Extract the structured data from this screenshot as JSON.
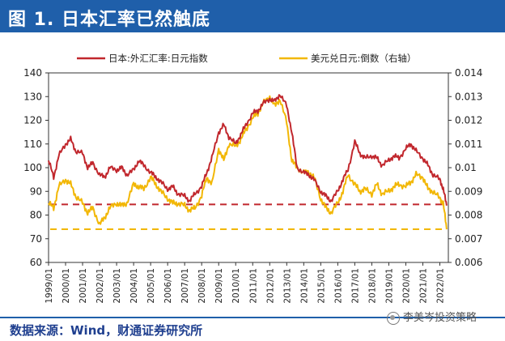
{
  "header": {
    "title": "图 1. 日本汇率已然触底"
  },
  "footer": {
    "source": "数据来源：Wind，财通证券研究所",
    "watermark": "李美岑投资策略"
  },
  "colors": {
    "series1": "#c1272d",
    "series2": "#f2b705",
    "title_bg": "#1f5faa"
  },
  "chart_data": {
    "type": "line",
    "legend": [
      "日本:外汇汇率:日元指数",
      "美元兑日元:倒数（右轴）"
    ],
    "x_labels": [
      "1999/01",
      "2000/01",
      "2001/01",
      "2002/01",
      "2003/01",
      "2004/01",
      "2005/01",
      "2006/01",
      "2007/01",
      "2008/01",
      "2009/01",
      "2010/01",
      "2011/01",
      "2012/01",
      "2013/01",
      "2014/01",
      "2015/01",
      "2016/01",
      "2017/01",
      "2018/01",
      "2019/01",
      "2020/01",
      "2021/01",
      "2022/01"
    ],
    "left_axis": {
      "min": 60,
      "max": 140,
      "ticks": [
        "140",
        "130",
        "120",
        "110",
        "100",
        "90",
        "80",
        "70",
        "60"
      ]
    },
    "right_axis": {
      "min": 0.006,
      "max": 0.014,
      "ticks": [
        "0.014",
        "0.013",
        "0.012",
        "0.011",
        "0.01",
        "0.009",
        "0.008",
        "0.007",
        "0.006"
      ]
    },
    "ref_lines": {
      "left": 84.5,
      "right": 0.0074
    },
    "series": [
      {
        "name": "日本:外汇汇率:日元指数",
        "axis": "left",
        "x": [
          1999.0,
          1999.3,
          1999.6,
          2000.0,
          2000.3,
          2000.6,
          2001.0,
          2001.3,
          2001.6,
          2002.0,
          2002.3,
          2002.6,
          2003.0,
          2003.3,
          2003.6,
          2004.0,
          2004.3,
          2004.6,
          2005.0,
          2005.3,
          2005.6,
          2006.0,
          2006.3,
          2006.6,
          2007.0,
          2007.3,
          2007.6,
          2008.0,
          2008.3,
          2008.6,
          2009.0,
          2009.3,
          2009.6,
          2010.0,
          2010.3,
          2010.6,
          2011.0,
          2011.3,
          2011.6,
          2012.0,
          2012.3,
          2012.6,
          2013.0,
          2013.3,
          2013.6,
          2014.0,
          2014.3,
          2014.6,
          2015.0,
          2015.3,
          2015.6,
          2016.0,
          2016.3,
          2016.6,
          2017.0,
          2017.3,
          2017.6,
          2018.0,
          2018.3,
          2018.6,
          2019.0,
          2019.3,
          2019.6,
          2020.0,
          2020.3,
          2020.6,
          2021.0,
          2021.3,
          2021.6,
          2022.0,
          2022.2,
          2022.4
        ],
        "values": [
          103,
          96,
          105,
          110,
          112,
          107,
          106,
          100,
          102,
          97,
          96,
          100,
          99,
          100,
          97,
          99,
          103,
          101,
          98,
          96,
          94,
          91,
          92,
          89,
          88,
          86,
          89,
          92,
          98,
          104,
          115,
          118,
          113,
          110,
          114,
          118,
          123,
          124,
          127,
          129,
          128,
          131,
          126,
          115,
          100,
          98,
          97,
          95,
          90,
          88,
          86,
          90,
          95,
          99,
          111,
          106,
          104,
          105,
          104,
          101,
          103,
          105,
          104,
          108,
          110,
          107,
          104,
          101,
          97,
          95,
          91,
          84
        ]
      },
      {
        "name": "美元兑日元:倒数（右轴）",
        "axis": "right",
        "x": [
          1999.0,
          1999.3,
          1999.6,
          2000.0,
          2000.3,
          2000.6,
          2001.0,
          2001.3,
          2001.6,
          2002.0,
          2002.3,
          2002.6,
          2003.0,
          2003.3,
          2003.6,
          2004.0,
          2004.3,
          2004.6,
          2005.0,
          2005.3,
          2005.6,
          2006.0,
          2006.3,
          2006.6,
          2007.0,
          2007.3,
          2007.6,
          2008.0,
          2008.3,
          2008.6,
          2009.0,
          2009.3,
          2009.6,
          2010.0,
          2010.3,
          2010.6,
          2011.0,
          2011.3,
          2011.6,
          2012.0,
          2012.3,
          2012.6,
          2013.0,
          2013.3,
          2013.6,
          2014.0,
          2014.3,
          2014.6,
          2015.0,
          2015.3,
          2015.6,
          2016.0,
          2016.3,
          2016.6,
          2017.0,
          2017.3,
          2017.6,
          2018.0,
          2018.3,
          2018.6,
          2019.0,
          2019.3,
          2019.6,
          2020.0,
          2020.3,
          2020.6,
          2021.0,
          2021.3,
          2021.6,
          2022.0,
          2022.2,
          2022.4
        ],
        "values": [
          0.0085,
          0.0083,
          0.0092,
          0.0095,
          0.0093,
          0.0088,
          0.0085,
          0.0081,
          0.0083,
          0.0076,
          0.0079,
          0.0083,
          0.0085,
          0.0084,
          0.0085,
          0.0093,
          0.0092,
          0.0091,
          0.0096,
          0.0093,
          0.009,
          0.0087,
          0.0085,
          0.0085,
          0.0084,
          0.0082,
          0.0083,
          0.0088,
          0.0096,
          0.0093,
          0.0108,
          0.0103,
          0.011,
          0.0109,
          0.0112,
          0.0116,
          0.0121,
          0.0123,
          0.0127,
          0.013,
          0.0126,
          0.0129,
          0.0119,
          0.0103,
          0.01,
          0.0098,
          0.0098,
          0.0096,
          0.0087,
          0.0083,
          0.0081,
          0.0085,
          0.009,
          0.0097,
          0.0093,
          0.009,
          0.0091,
          0.0089,
          0.0093,
          0.0089,
          0.009,
          0.0092,
          0.0093,
          0.0092,
          0.0094,
          0.0097,
          0.0096,
          0.0091,
          0.009,
          0.0087,
          0.0085,
          0.0074
        ]
      }
    ]
  }
}
